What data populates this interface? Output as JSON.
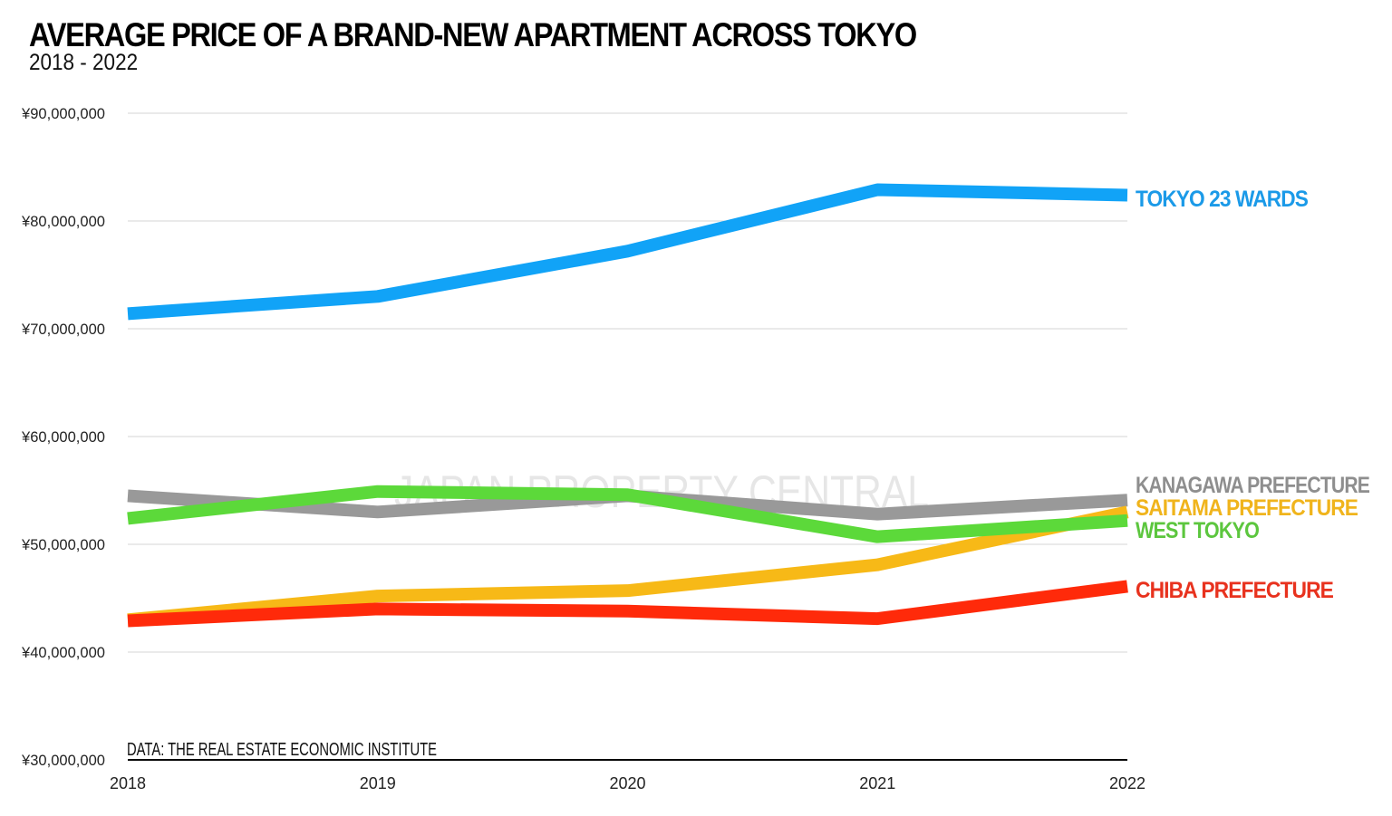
{
  "chart_data": {
    "type": "line",
    "title": "AVERAGE PRICE OF A BRAND-NEW APARTMENT ACROSS TOKYO",
    "subtitle": "2018 - 2022",
    "source": "DATA: THE REAL ESTATE ECONOMIC INSTITUTE",
    "watermark": "JAPAN PROPERTY CENTRAL",
    "xlabel": "",
    "ylabel": "",
    "x": [
      "2018",
      "2019",
      "2020",
      "2021",
      "2022"
    ],
    "ylim": [
      30000000,
      90000000
    ],
    "yticks": [
      30000000,
      40000000,
      50000000,
      60000000,
      70000000,
      80000000,
      90000000
    ],
    "ytick_labels": [
      "¥30,000,000",
      "¥40,000,000",
      "¥50,000,000",
      "¥60,000,000",
      "¥70,000,000",
      "¥80,000,000",
      "¥90,000,000"
    ],
    "grid": true,
    "legend": "inline-right",
    "series": [
      {
        "name": "KANAGAWA PREFECTURE",
        "color": "#999999",
        "label_color": "#8e8e8e",
        "values": [
          54500000,
          53000000,
          54500000,
          52800000,
          54100000
        ]
      },
      {
        "name": "SAITAMA PREFECTURE",
        "color": "#f7b917",
        "label_color": "#f0b41c",
        "values": [
          43000000,
          45200000,
          45700000,
          48100000,
          53000000
        ]
      },
      {
        "name": "CHIBA PREFECTURE",
        "color": "#ff2a0a",
        "label_color": "#e8321e",
        "values": [
          42900000,
          44000000,
          43800000,
          43100000,
          46100000
        ]
      },
      {
        "name": "WEST TOKYO",
        "color": "#5cd93a",
        "label_color": "#5cc63e",
        "values": [
          52400000,
          54900000,
          54600000,
          50700000,
          52200000
        ]
      },
      {
        "name": "TOKYO 23 WARDS",
        "color": "#11a3f7",
        "label_color": "#1b9ae8",
        "values": [
          71400000,
          73000000,
          77200000,
          82900000,
          82400000
        ]
      }
    ]
  }
}
